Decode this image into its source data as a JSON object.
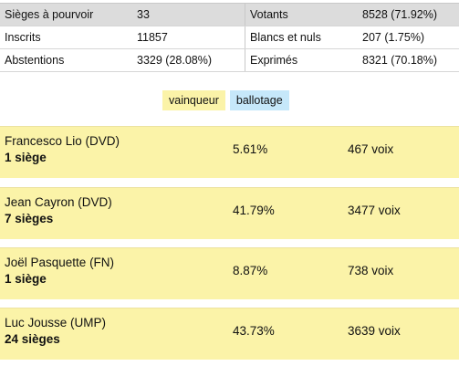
{
  "summary": {
    "rows": [
      {
        "label1": "Sièges à pourvoir",
        "value1": "33",
        "label2": "Votants",
        "value2": "8528 (71.92%)"
      },
      {
        "label1": "Inscrits",
        "value1": "11857",
        "label2": "Blancs et nuls",
        "value2": "207 (1.75%)"
      },
      {
        "label1": "Abstentions",
        "value1": "3329 (28.08%)",
        "label2": "Exprimés",
        "value2": "8321 (70.18%)"
      }
    ]
  },
  "legend": {
    "winner": "vainqueur",
    "runoff": "ballotage",
    "winner_color": "#fbf3a8",
    "runoff_color": "#c6e8fa"
  },
  "candidates": [
    {
      "name": "Francesco Lio (DVD)",
      "seats": "1 siège",
      "percent": "5.61%",
      "votes": "467 voix"
    },
    {
      "name": "Jean Cayron (DVD)",
      "seats": "7 sièges",
      "percent": "41.79%",
      "votes": "3477 voix"
    },
    {
      "name": "Joël Pasquette (FN)",
      "seats": "1 siège",
      "percent": "8.87%",
      "votes": "738 voix"
    },
    {
      "name": "Luc Jousse (UMP)",
      "seats": "24 sièges",
      "percent": "43.73%",
      "votes": "3639 voix"
    }
  ]
}
